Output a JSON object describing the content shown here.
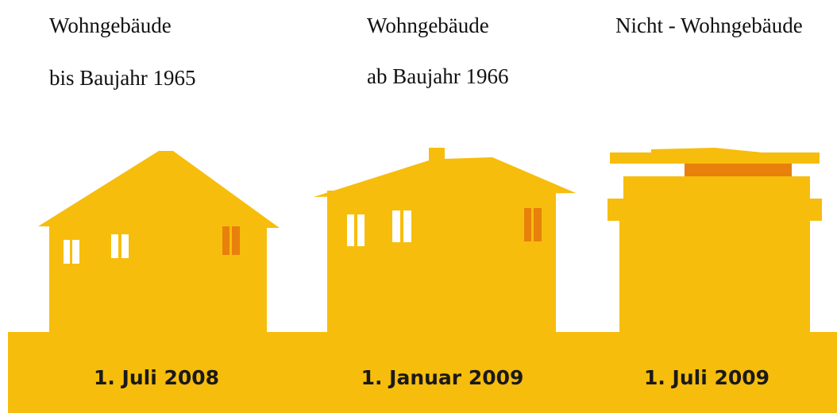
{
  "columns": [
    {
      "title": "Wohngebäude",
      "subtitle": "bis Baujahr 1965",
      "date": "1. Juli 2008"
    },
    {
      "title": "Wohngebäude",
      "subtitle": "ab Baujahr 1966",
      "date": "1. Januar 2009"
    },
    {
      "title": "Nicht - Wohngebäude",
      "date": "1. Juli 2009"
    }
  ]
}
